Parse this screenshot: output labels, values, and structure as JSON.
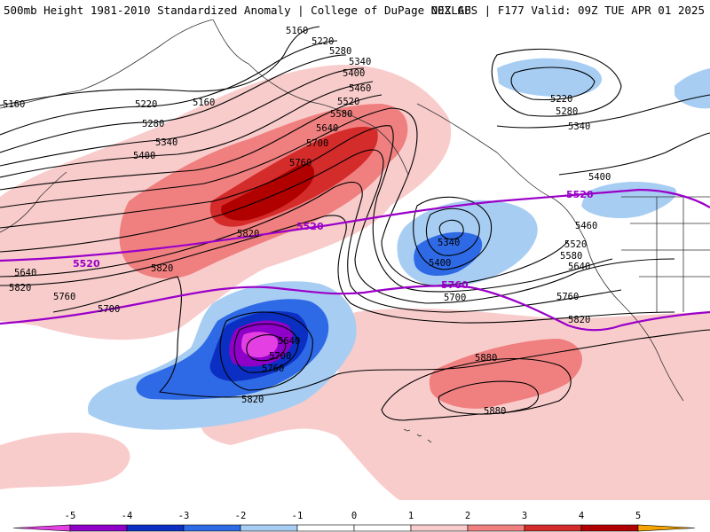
{
  "title": {
    "left": "500mb Height 1981-2010 Standardized Anomaly | College of DuPage NEXLAB",
    "right": "00Z GFS | F177 Valid: 09Z TUE APR 01 2025"
  },
  "colors": {
    "neg5": "#e33fe3",
    "neg4": "#8f00c8",
    "neg3": "#0a2fc2",
    "neg2": "#2f6ae6",
    "neg1": "#a7cdf3",
    "neutral": "#ffffff",
    "pos1": "#f9cccc",
    "pos2": "#f08080",
    "pos3": "#d42b2b",
    "pos4": "#b10000",
    "pos5": "#f5a400",
    "thickness_line": "#9a00c8",
    "height_line": "#000000"
  },
  "colorbar": {
    "ticks": [
      "-5",
      "-4",
      "-3",
      "-2",
      "-1",
      "0",
      "1",
      "2",
      "3",
      "4",
      "5"
    ]
  },
  "height_labels": [
    "5160",
    "5220",
    "5280",
    "5340",
    "5400",
    "5460",
    "5520",
    "5580",
    "5640",
    "5700",
    "5760",
    "5160",
    "5220",
    "5280",
    "5340",
    "5400",
    "5160",
    "5640",
    "5820",
    "5820",
    "5220",
    "5280",
    "5340",
    "5400",
    "5460",
    "5520",
    "5580",
    "5640",
    "5340",
    "5400",
    "5700",
    "5760",
    "5820",
    "5640",
    "5700",
    "5760",
    "5820",
    "5880",
    "5880",
    "5820",
    "5760",
    "5700",
    "5640"
  ],
  "thickness_labels": [
    "5520",
    "5520",
    "5520",
    "5760"
  ]
}
